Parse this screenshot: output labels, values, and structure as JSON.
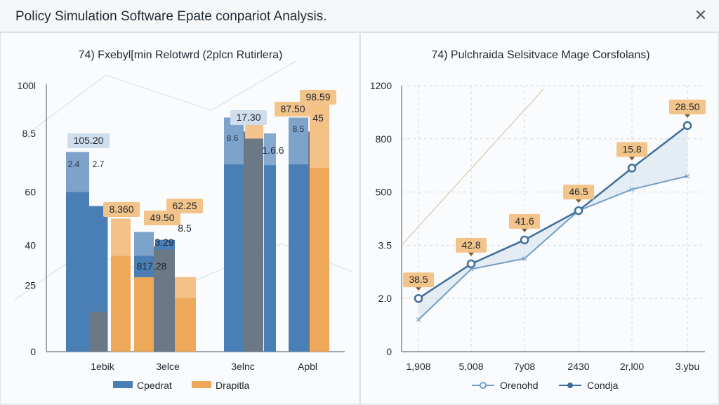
{
  "window": {
    "title": "Policy Simulation Software Epate conpariot Analysis.",
    "close_icon": "close-icon"
  },
  "colors": {
    "blue": "#4a7fb5",
    "blue_light": "#86a9cf",
    "gray": "#6b7886",
    "orange": "#eda85a",
    "orange_light": "#f4c48c",
    "label_orange_bg": "#f3c48a",
    "label_blue_bg": "#cfdeec",
    "line_dark": "#3f6e9c",
    "line_light": "#6f9ec8"
  },
  "chart_data": [
    {
      "type": "bar",
      "title": "74) Fxebyl[min Relotwrd (2plcn Rutirlera)",
      "yticks": [
        "0",
        "25",
        "40",
        "60",
        "8.5",
        "100l"
      ],
      "categories": [
        "1ebik",
        "3elce",
        "3elnc",
        "Apbl"
      ],
      "series": [
        {
          "name": "Cpedrat",
          "values": [
            75,
            45,
            88,
            88
          ]
        },
        {
          "name": "Drapitla",
          "values": [
            50,
            28,
            82,
            96
          ]
        }
      ],
      "bar_labels": [
        "105.20",
        "8.360",
        "49.50",
        "62.25",
        "3.29",
        "817.28",
        "17.30",
        "1.6.6",
        "87.50",
        "98.59",
        "45",
        "8.5",
        "2.4",
        "2.7",
        "8.6",
        "8.5"
      ],
      "legend": [
        "Cpedrat",
        "Drapitla"
      ],
      "legend_position": "bottom",
      "grid": false
    },
    {
      "type": "line",
      "title": "74) Pulchraida Selsitvace Mage Corsfolans)",
      "yticks": [
        "0",
        "2.0",
        "3.5",
        "500",
        "800",
        "1200"
      ],
      "x": [
        "1,908",
        "5,008",
        "7y08",
        "2430",
        "2r,l00",
        "3.ybu"
      ],
      "series": [
        {
          "name": "Orenohd",
          "values": [
            1.2,
            3.1,
            3.5,
            5.3,
            6.1,
            6.6
          ]
        },
        {
          "name": "Condja",
          "values": [
            2.0,
            3.3,
            4.2,
            5.3,
            6.9,
            8.5
          ]
        }
      ],
      "point_labels": [
        "38.5",
        "42.8",
        "41.6",
        "46.5",
        "15.8",
        "28.50"
      ],
      "legend": [
        "Orenohd",
        "Condja"
      ],
      "legend_position": "bottom",
      "grid": true
    }
  ]
}
